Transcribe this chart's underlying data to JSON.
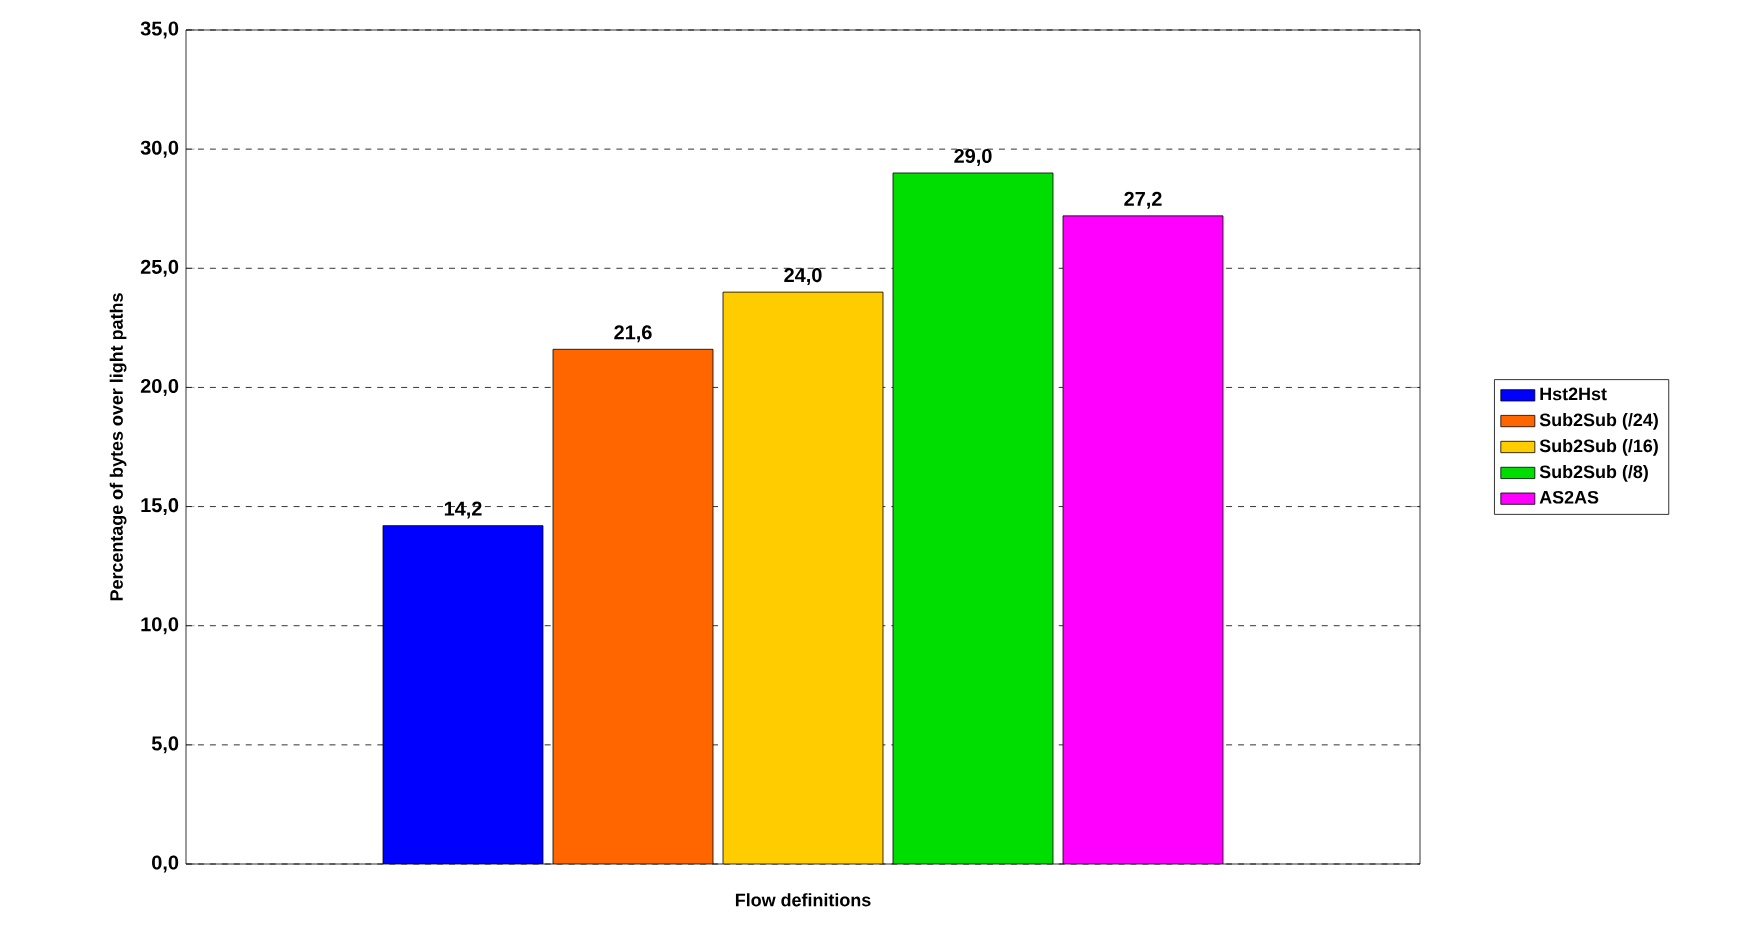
{
  "chart_data": {
    "type": "bar",
    "xlabel": "Flow definitions",
    "ylabel": "Percentage of bytes over light paths",
    "categories": [
      null
    ],
    "series": [
      {
        "name": "Hst2Hst",
        "color": "#0000ff",
        "values": [
          14.2
        ],
        "value_labels": [
          "14,2"
        ]
      },
      {
        "name": "Sub2Sub (/24)",
        "color": "#ff6600",
        "values": [
          21.6
        ],
        "value_labels": [
          "21,6"
        ]
      },
      {
        "name": "Sub2Sub (/16)",
        "color": "#ffcc00",
        "values": [
          24.0
        ],
        "value_labels": [
          "24,0"
        ]
      },
      {
        "name": "Sub2Sub (/8)",
        "color": "#00dd00",
        "values": [
          29.0
        ],
        "value_labels": [
          "29,0"
        ]
      },
      {
        "name": "AS2AS",
        "color": "#ff00ff",
        "values": [
          27.2
        ],
        "value_labels": [
          "27,2"
        ]
      }
    ],
    "ylim": [
      0,
      35
    ],
    "yticks": [
      {
        "value": 0,
        "label": "0,0"
      },
      {
        "value": 5,
        "label": "5,0"
      },
      {
        "value": 10,
        "label": "10,0"
      },
      {
        "value": 15,
        "label": "15,0"
      },
      {
        "value": 20,
        "label": "20,0"
      },
      {
        "value": 25,
        "label": "25,0"
      },
      {
        "value": 30,
        "label": "30,0"
      },
      {
        "value": 35,
        "label": "35,0"
      }
    ],
    "grid": "y",
    "legend": "right"
  }
}
